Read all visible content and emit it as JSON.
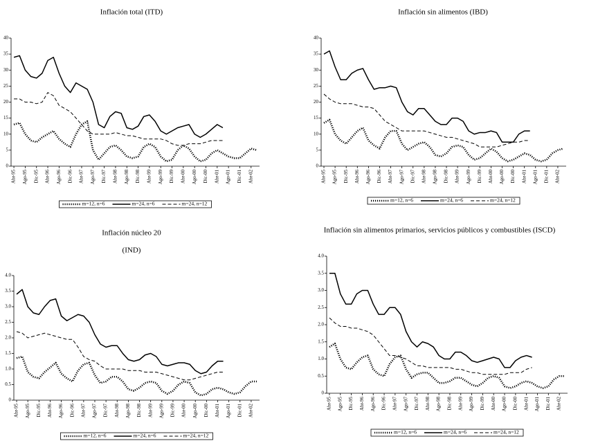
{
  "chart_data": [
    {
      "type": "line",
      "title": "Inflación total (ITD)",
      "color": "#000000",
      "categories": [
        "Abr-95",
        null,
        "Ago-95",
        null,
        "Dic-95",
        null,
        "Abr-96",
        null,
        "Ago-96",
        null,
        "Dic-96",
        null,
        "Abr-97",
        null,
        "Ago-97",
        null,
        "Dic-97",
        null,
        "Abr-98",
        null,
        "Ago-98",
        null,
        "Dic-98",
        null,
        "Abr-99",
        null,
        "Ago-99",
        null,
        "Dic-99",
        null,
        "Abr-00",
        null,
        "Ago-00",
        null,
        "Dic-00",
        null,
        "Abr-01",
        null,
        "Ago-01",
        null,
        "Dic-01",
        null,
        "Abr-02",
        null
      ],
      "ylim": [
        0,
        40
      ],
      "yticks": [
        0,
        5,
        10,
        15,
        20,
        25,
        30,
        35,
        40
      ],
      "series": [
        {
          "name": "m=12, n=6",
          "line_style": "dotted",
          "values": [
            13,
            13.5,
            10,
            8,
            7.5,
            9,
            10,
            11,
            8.5,
            7,
            6,
            10,
            13,
            14,
            5,
            2,
            4,
            6,
            6.5,
            5,
            3,
            2.5,
            3,
            6,
            7,
            6,
            3,
            1.5,
            2,
            5,
            6.5,
            5.5,
            3,
            1.5,
            2,
            4,
            5,
            4,
            3,
            2.5,
            2.5,
            4,
            5.5,
            5
          ]
        },
        {
          "name": "m=24, n=6",
          "line_style": "solid",
          "values": [
            34,
            34.5,
            30,
            28,
            27.5,
            29,
            33,
            34,
            29,
            25,
            23,
            26,
            25,
            24,
            20,
            13,
            12,
            15.5,
            17,
            16.5,
            12,
            11.5,
            12.5,
            15.5,
            16,
            14,
            11,
            10,
            11,
            12,
            12.5,
            13,
            10,
            9,
            10,
            11.5,
            13,
            12,
            null,
            null,
            null,
            null,
            null,
            null
          ]
        },
        {
          "name": "m=24, n=12",
          "line_style": "dashed",
          "values": [
            21,
            21,
            20,
            20,
            19.5,
            20,
            23,
            22,
            19,
            18,
            17,
            15,
            13,
            11,
            10,
            10,
            10,
            10,
            10.5,
            10,
            9.5,
            9.5,
            9,
            8.5,
            8.5,
            8.5,
            8.5,
            8,
            7,
            6.5,
            6.5,
            7,
            7,
            7,
            7.5,
            8,
            8,
            8,
            null,
            null,
            null,
            null,
            null,
            null
          ]
        }
      ]
    },
    {
      "type": "line",
      "title": "Inflación sin alimentos (IBD)",
      "color": "#000000",
      "categories": [
        "Abr-95",
        null,
        "Ago-95",
        null,
        "Dic-95",
        null,
        "Abr-96",
        null,
        "Ago-96",
        null,
        "Dic-96",
        null,
        "Abr-97",
        null,
        "Ago-97",
        null,
        "Dic-97",
        null,
        "Abr-98",
        null,
        "Ago-98",
        null,
        "Dic-98",
        null,
        "Abr-99",
        null,
        "Ago-99",
        null,
        "Dic-99",
        null,
        "Abr-00",
        null,
        "Ago-00",
        null,
        "Dic-00",
        null,
        "Abr-01",
        null,
        "Ago-01",
        null,
        "Dic-01",
        null,
        "Abr-02",
        null
      ],
      "ylim": [
        0,
        40
      ],
      "yticks": [
        0,
        5,
        10,
        15,
        20,
        25,
        30,
        35,
        40
      ],
      "series": [
        {
          "name": "m=12, n=6",
          "line_style": "dotted",
          "values": [
            13.5,
            14.5,
            10,
            8,
            7,
            9,
            11,
            12,
            8,
            6.5,
            5.5,
            9,
            11,
            11,
            7,
            5,
            6,
            7,
            7.5,
            6,
            3.5,
            3,
            4,
            6,
            6.5,
            6,
            3.5,
            2,
            2.5,
            4,
            5.5,
            4.5,
            2.5,
            1.5,
            2,
            3,
            4,
            3.5,
            2,
            1.5,
            2,
            4,
            5,
            5.5
          ]
        },
        {
          "name": "m=24, n=6",
          "line_style": "solid",
          "values": [
            35,
            36,
            31,
            27,
            27,
            29,
            30,
            30.5,
            27,
            24,
            24.5,
            24.5,
            25,
            24.5,
            20,
            17,
            16,
            18,
            18,
            16,
            14,
            13,
            13,
            15,
            15,
            14,
            11,
            10,
            10.5,
            10.5,
            11,
            10.5,
            7.5,
            7.5,
            7.5,
            10,
            11,
            11,
            null,
            null,
            null,
            null,
            null,
            null
          ]
        },
        {
          "name": "m=24, n=12",
          "line_style": "dashed",
          "values": [
            22.5,
            21,
            20,
            19.5,
            19.5,
            19.5,
            19,
            18.5,
            18.5,
            18,
            16,
            14,
            13,
            12,
            11,
            11,
            11,
            11,
            11,
            10.5,
            10,
            9.5,
            9,
            9,
            8.5,
            8,
            7.5,
            7,
            6,
            6,
            6,
            6,
            6.5,
            7,
            7.5,
            7.5,
            8,
            8,
            null,
            null,
            null,
            null,
            null,
            null
          ]
        }
      ]
    },
    {
      "type": "line",
      "title": "Inflación núcleo 20",
      "subtitle": "(IND)",
      "color": "#000000",
      "categories": [
        "Abr-95",
        null,
        "Ago-95",
        null,
        "Dic-95",
        null,
        "Abr-96",
        null,
        "Ago-96",
        null,
        "Dic-96",
        null,
        "Abr-97",
        null,
        "Ago-97",
        null,
        "Dic-97",
        null,
        "Abr-98",
        null,
        "Ago-98",
        null,
        "Dic-98",
        null,
        "Abr-99",
        null,
        "Ago-99",
        null,
        "Dic-99",
        null,
        "Abr-00",
        null,
        "Ago-00",
        null,
        "Dic-00",
        null,
        "Abr-01",
        null,
        "Ago-01",
        null,
        "Dic-01",
        null,
        "Abr-02",
        null
      ],
      "ylim": [
        0,
        4
      ],
      "yticks": [
        0,
        0.5,
        {
          "value": 1,
          "label": "1.0"
        },
        1.5,
        {
          "value": 2,
          "label": "2.0"
        },
        2.5,
        {
          "value": 3,
          "label": "3.0"
        },
        3.5,
        {
          "value": 4,
          "label": "4.0"
        }
      ],
      "series": [
        {
          "name": "m=12, n=6",
          "line_style": "dotted",
          "values": [
            1.35,
            1.4,
            0.9,
            0.75,
            0.7,
            0.9,
            1.05,
            1.2,
            0.85,
            0.7,
            0.6,
            0.95,
            1.15,
            1.2,
            0.8,
            0.55,
            0.6,
            0.75,
            0.75,
            0.6,
            0.35,
            0.3,
            0.4,
            0.55,
            0.6,
            0.55,
            0.3,
            0.2,
            0.3,
            0.5,
            0.6,
            0.55,
            0.25,
            0.15,
            0.2,
            0.35,
            0.4,
            0.35,
            0.25,
            0.2,
            0.25,
            0.45,
            0.6,
            0.6
          ]
        },
        {
          "name": "m=24, n=6",
          "line_style": "solid",
          "values": [
            3.4,
            3.55,
            3,
            2.8,
            2.75,
            3,
            3.2,
            3.25,
            2.7,
            2.55,
            2.65,
            2.75,
            2.7,
            2.5,
            2.1,
            1.8,
            1.7,
            1.75,
            1.75,
            1.5,
            1.3,
            1.25,
            1.3,
            1.45,
            1.5,
            1.4,
            1.15,
            1.1,
            1.15,
            1.2,
            1.2,
            1.15,
            0.95,
            0.85,
            0.9,
            1.1,
            1.25,
            1.25,
            null,
            null,
            null,
            null,
            null,
            null
          ]
        },
        {
          "name": "m=24, n=12",
          "line_style": "dashed",
          "values": [
            2.2,
            2.15,
            2,
            2.05,
            2.1,
            2.15,
            2.1,
            2.05,
            2,
            1.95,
            1.95,
            1.7,
            1.4,
            1.3,
            1.25,
            1.1,
            1,
            1,
            1,
            1,
            0.95,
            0.95,
            0.95,
            0.9,
            0.9,
            0.9,
            0.85,
            0.8,
            0.75,
            0.7,
            0.65,
            0.65,
            0.7,
            0.75,
            0.8,
            0.85,
            0.9,
            0.9,
            null,
            null,
            null,
            null,
            null,
            null
          ]
        }
      ]
    },
    {
      "type": "line",
      "title": "Inflación sin alimentos primarios, servicios públicos y combustibles (ISCD)",
      "color": "#000000",
      "categories": [
        "Abr-95",
        null,
        "Ago-95",
        null,
        "Dic-95",
        null,
        "Abr-96",
        null,
        "Ago-96",
        null,
        "Dic-96",
        null,
        "Abr-97",
        null,
        "Ago-97",
        null,
        "Dic-97",
        null,
        "Abr-98",
        null,
        "Ago-98",
        null,
        "Dic-98",
        null,
        "Abr-99",
        null,
        "Ago-99",
        null,
        "Dic-99",
        null,
        "Abr-00",
        null,
        "Ago-00",
        null,
        "Dic-00",
        null,
        "Abr-01",
        null,
        "Ago-01",
        null,
        "Dic-01",
        null,
        "Abr-02",
        null
      ],
      "ylim": [
        0,
        4
      ],
      "yticks": [
        0,
        0.5,
        {
          "value": 1,
          "label": "1.0"
        },
        1.5,
        {
          "value": 2,
          "label": "2.0"
        },
        2.5,
        {
          "value": 3,
          "label": "3.0"
        },
        3.5,
        {
          "value": 4,
          "label": "4.0"
        }
      ],
      "series": [
        {
          "name": "m=12, n=6",
          "line_style": "dotted",
          "values": [
            1.35,
            1.45,
            1,
            0.75,
            0.7,
            0.9,
            1.05,
            1.1,
            0.7,
            0.55,
            0.5,
            0.85,
            1.05,
            1.1,
            0.7,
            0.45,
            0.55,
            0.6,
            0.6,
            0.45,
            0.3,
            0.3,
            0.35,
            0.45,
            0.45,
            0.35,
            0.25,
            0.2,
            0.3,
            0.45,
            0.5,
            0.45,
            0.2,
            0.15,
            0.2,
            0.3,
            0.35,
            0.3,
            0.2,
            0.15,
            0.2,
            0.4,
            0.5,
            0.5
          ]
        },
        {
          "name": "m=24, n=6",
          "line_style": "solid",
          "values": [
            3.5,
            3.5,
            2.9,
            2.6,
            2.6,
            2.9,
            3,
            3,
            2.6,
            2.3,
            2.3,
            2.5,
            2.5,
            2.3,
            1.8,
            1.5,
            1.35,
            1.5,
            1.45,
            1.35,
            1.1,
            1,
            1,
            1.2,
            1.2,
            1.1,
            0.95,
            0.9,
            0.95,
            1,
            1.05,
            1,
            0.75,
            0.75,
            0.95,
            1.05,
            1.1,
            1.05,
            null,
            null,
            null,
            null,
            null,
            null
          ]
        },
        {
          "name": "m=24, n=12",
          "line_style": "dashed",
          "values": [
            2.2,
            2.05,
            1.95,
            1.95,
            1.9,
            1.9,
            1.85,
            1.8,
            1.7,
            1.5,
            1.3,
            1.1,
            1.1,
            1.05,
            1,
            0.9,
            0.8,
            0.8,
            0.75,
            0.75,
            0.75,
            0.75,
            0.75,
            0.7,
            0.7,
            0.65,
            0.6,
            0.6,
            0.55,
            0.55,
            0.55,
            0.55,
            0.55,
            0.6,
            0.6,
            0.6,
            0.7,
            0.75,
            null,
            null,
            null,
            null,
            null,
            null
          ]
        }
      ]
    }
  ]
}
